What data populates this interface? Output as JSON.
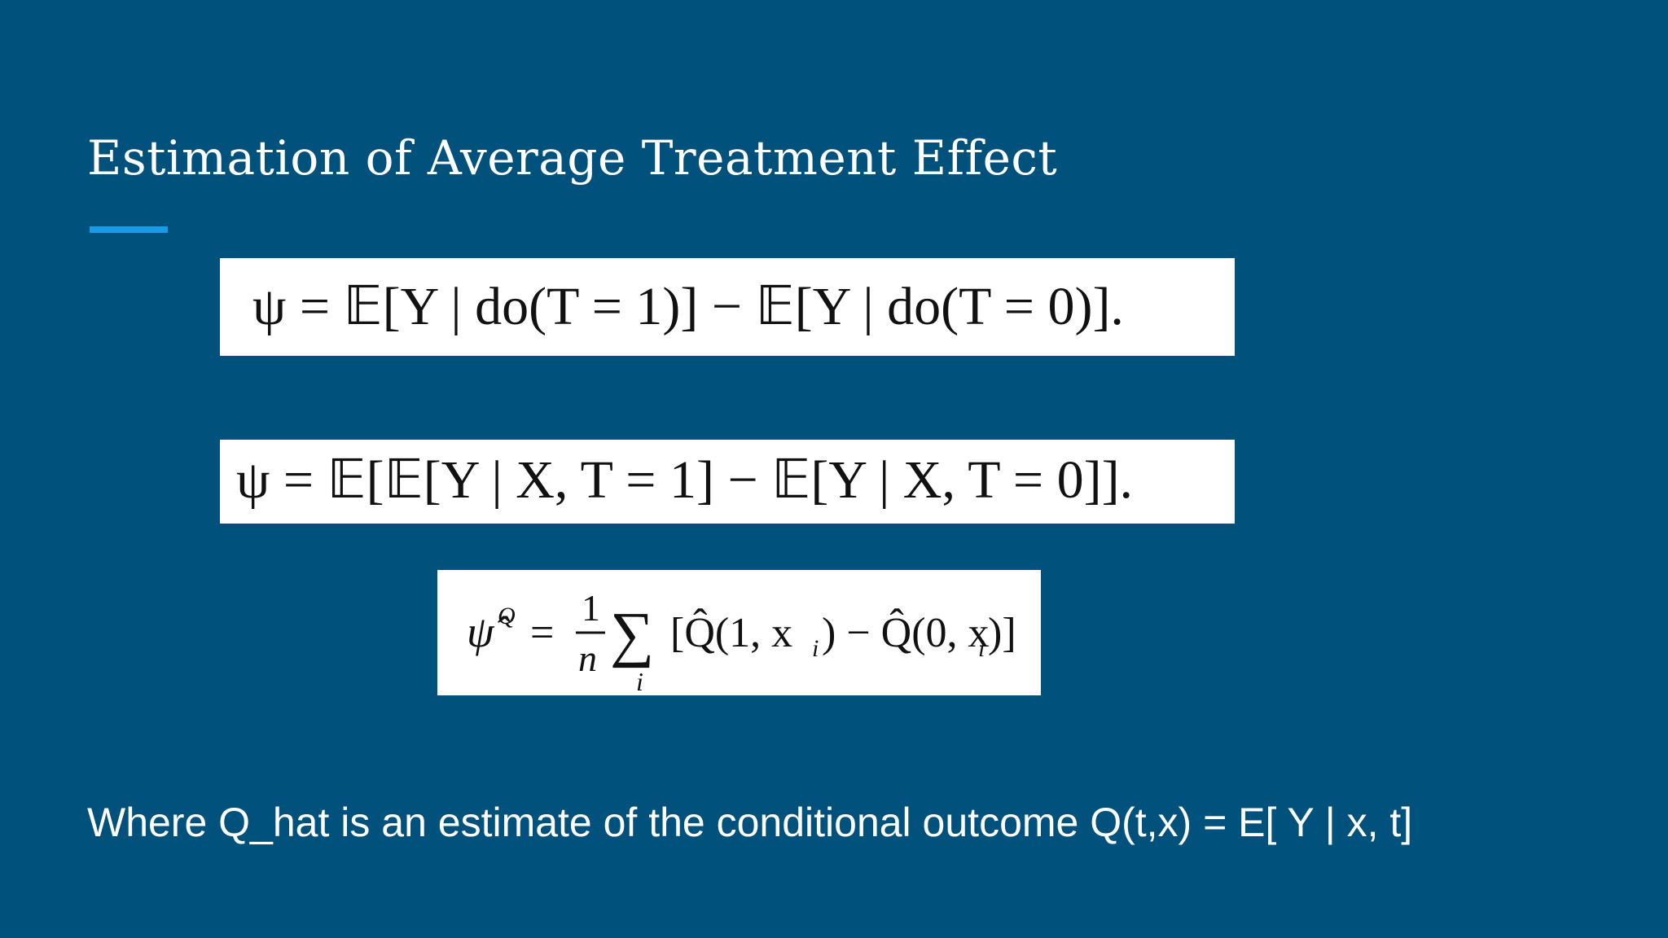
{
  "slide": {
    "title": "Estimation of Average Treatment Effect",
    "formulas": [
      {
        "id": "ate-do-definition",
        "latex": "\\psi = \\mathbb{E}[Y \\mid do(T=1)] - \\mathbb{E}[Y \\mid do(T=0)].",
        "text": "ψ = 𝔼[Y | do(T = 1)] − 𝔼[Y | do(T = 0)]."
      },
      {
        "id": "ate-adjustment-formula",
        "latex": "\\psi = \\mathbb{E}[\\mathbb{E}[Y \\mid X, T=1] - \\mathbb{E}[Y \\mid X, T=0]].",
        "text": "ψ = 𝔼[𝔼[Y | X, T = 1] − 𝔼[Y | X, T = 0]]."
      },
      {
        "id": "ate-plugin-estimator",
        "latex": "\\hat{\\psi}^{Q} = \\frac{1}{n}\\sum_i[\\hat{Q}(1,x_i) - \\hat{Q}(0,x_i)]",
        "lhs": "ψ̂",
        "lhs_superscript": "Q",
        "equals": "=",
        "fraction_numerator": "1",
        "fraction_denominator": "n",
        "sum_symbol": "∑",
        "sum_index": "i",
        "bracket_body": "[Q̂(1, x",
        "subscript_i": "i",
        "middle": ") − Q̂(0, x",
        "closing": ")]"
      }
    ],
    "footnote": "Where Q_hat is an estimate of the conditional outcome Q(t,x) = E[ Y | x, t]"
  },
  "colors": {
    "background": "#00527d",
    "accent_bar": "#1a9be8",
    "title_text": "#ffffff",
    "formula_box": "#ffffff",
    "formula_text": "#111111"
  }
}
